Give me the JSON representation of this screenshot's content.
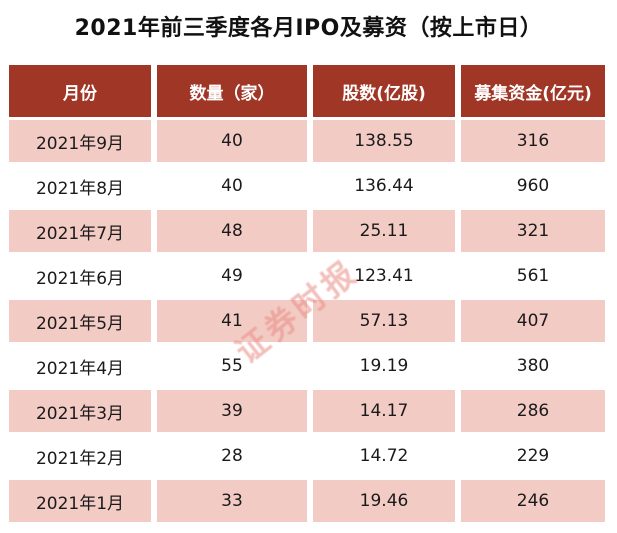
{
  "title": "2021年前三季度各月IPO及募资（按上市日）",
  "watermark": "证券时报",
  "colors": {
    "header_bg": "#A03626",
    "header_text": "#FFFFFF",
    "row_pink": "#F3CBC5",
    "row_white": "#FFFFFF",
    "body_text": "#1A1A1A",
    "watermark_color": "#E98B84"
  },
  "table": {
    "columns": [
      "月份",
      "数量（家）",
      "股数(亿股)",
      "募集资金(亿元)"
    ],
    "rows": [
      [
        "2021年9月",
        "40",
        "138.55",
        "316"
      ],
      [
        "2021年8月",
        "40",
        "136.44",
        "960"
      ],
      [
        "2021年7月",
        "48",
        "25.11",
        "321"
      ],
      [
        "2021年6月",
        "49",
        "123.41",
        "561"
      ],
      [
        "2021年5月",
        "41",
        "57.13",
        "407"
      ],
      [
        "2021年4月",
        "55",
        "19.19",
        "380"
      ],
      [
        "2021年3月",
        "39",
        "14.17",
        "286"
      ],
      [
        "2021年2月",
        "28",
        "14.72",
        "229"
      ],
      [
        "2021年1月",
        "33",
        "19.46",
        "246"
      ]
    ]
  },
  "chart_data": {
    "type": "table",
    "title": "2021年前三季度各月IPO及募资（按上市日）",
    "columns": [
      "月份",
      "数量（家）",
      "股数(亿股)",
      "募集资金(亿元)"
    ],
    "categories": [
      "2021年9月",
      "2021年8月",
      "2021年7月",
      "2021年6月",
      "2021年5月",
      "2021年4月",
      "2021年3月",
      "2021年2月",
      "2021年1月"
    ],
    "series": [
      {
        "name": "数量（家）",
        "values": [
          40,
          40,
          48,
          49,
          41,
          55,
          39,
          28,
          33
        ]
      },
      {
        "name": "股数(亿股)",
        "values": [
          138.55,
          136.44,
          25.11,
          123.41,
          57.13,
          19.19,
          14.17,
          14.72,
          19.46
        ]
      },
      {
        "name": "募集资金(亿元)",
        "values": [
          316,
          960,
          321,
          561,
          407,
          380,
          286,
          229,
          246
        ]
      }
    ]
  }
}
